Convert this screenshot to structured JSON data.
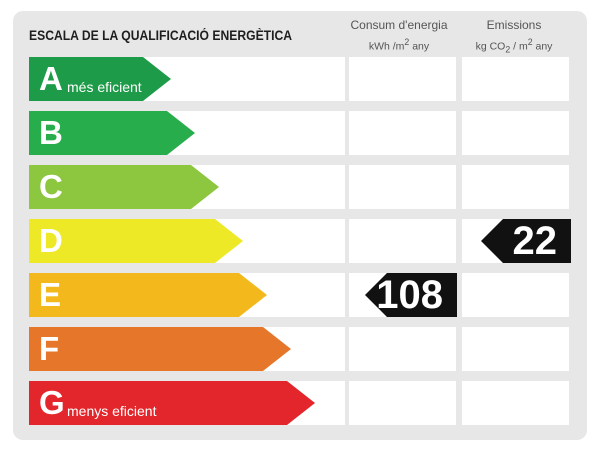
{
  "title": "ESCALA DE LA QUALIFICACIÓ ENERGÈTICA",
  "columns": {
    "consum": {
      "label": "Consum d'energia",
      "unit_a": "kWh /m",
      "unit_sup": "2",
      "unit_b": " any"
    },
    "emissions": {
      "label": "Emissions",
      "unit_a": "kg CO",
      "unit_sub": "2",
      "unit_b": " / m",
      "unit_sup": "2",
      "unit_c": " any"
    }
  },
  "classes": [
    {
      "letter": "A",
      "sublabel": "més eficient",
      "color": "#1e9b48"
    },
    {
      "letter": "B",
      "sublabel": "",
      "color": "#27ad4c"
    },
    {
      "letter": "C",
      "sublabel": "",
      "color": "#8dc63f"
    },
    {
      "letter": "D",
      "sublabel": "",
      "color": "#eee926"
    },
    {
      "letter": "E",
      "sublabel": "",
      "color": "#f3b81b"
    },
    {
      "letter": "F",
      "sublabel": "",
      "color": "#e5762a"
    },
    {
      "letter": "G",
      "sublabel": "menys eficient",
      "color": "#e3262b"
    }
  ],
  "consumption_rating": {
    "class": "E",
    "value": "108"
  },
  "emissions_rating": {
    "class": "D",
    "value": "22"
  }
}
